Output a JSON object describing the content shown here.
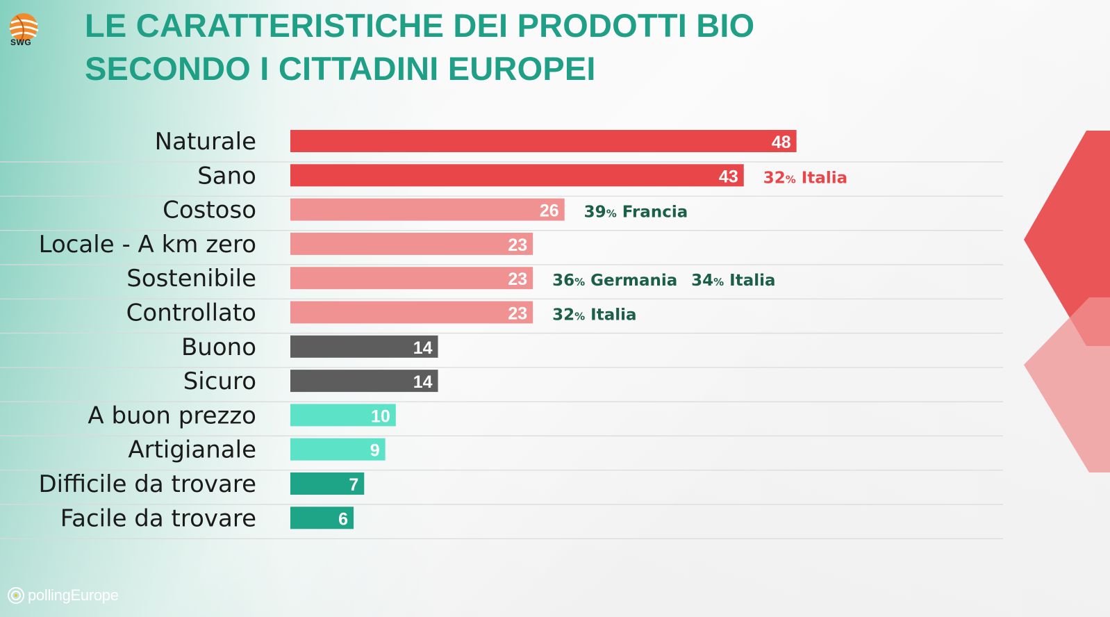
{
  "header": {
    "brand": "SWG",
    "title_line1": "LE CARATTERISTICHE DEI PRODOTTI BIO",
    "title_line2": "SECONDO I CITTADINI EUROPEI"
  },
  "footer": {
    "brand": "pollingEurope"
  },
  "colors": {
    "title": "#1e9f86",
    "red": "#e84649",
    "pink": "#f09192",
    "gray": "#5d5d5d",
    "aqua": "#5ce3c7",
    "teal": "#1ea486",
    "note_red": "#e84649",
    "note_green": "#1b5e4a"
  },
  "chart_data": {
    "type": "bar",
    "orientation": "horizontal",
    "categories": [
      "Naturale",
      "Sano",
      "Costoso",
      "Locale - A km zero",
      "Sostenibile",
      "Controllato",
      "Buono",
      "Sicuro",
      "A buon prezzo",
      "Artigianale",
      "Difficile da trovare",
      "Facile da trovare"
    ],
    "values": [
      48,
      43,
      26,
      23,
      23,
      23,
      14,
      14,
      10,
      9,
      7,
      6
    ],
    "bar_colors": [
      "red",
      "red",
      "pink",
      "pink",
      "pink",
      "pink",
      "gray",
      "gray",
      "aqua",
      "aqua",
      "teal",
      "teal"
    ],
    "annotations": [
      {
        "row": 1,
        "items": [
          {
            "value": "32",
            "unit": "%",
            "label": "Italia",
            "color": "note_red"
          }
        ]
      },
      {
        "row": 2,
        "items": [
          {
            "value": "39",
            "unit": "%",
            "label": "Francia",
            "color": "note_green"
          }
        ]
      },
      {
        "row": 4,
        "items": [
          {
            "value": "36",
            "unit": "%",
            "label": "Germania",
            "color": "note_green"
          },
          {
            "value": "34",
            "unit": "%",
            "label": "Italia",
            "color": "note_green"
          }
        ]
      },
      {
        "row": 5,
        "items": [
          {
            "value": "32",
            "unit": "%",
            "label": "Italia",
            "color": "note_green"
          }
        ]
      }
    ],
    "grid": "horizontal separators",
    "legend": "none"
  }
}
